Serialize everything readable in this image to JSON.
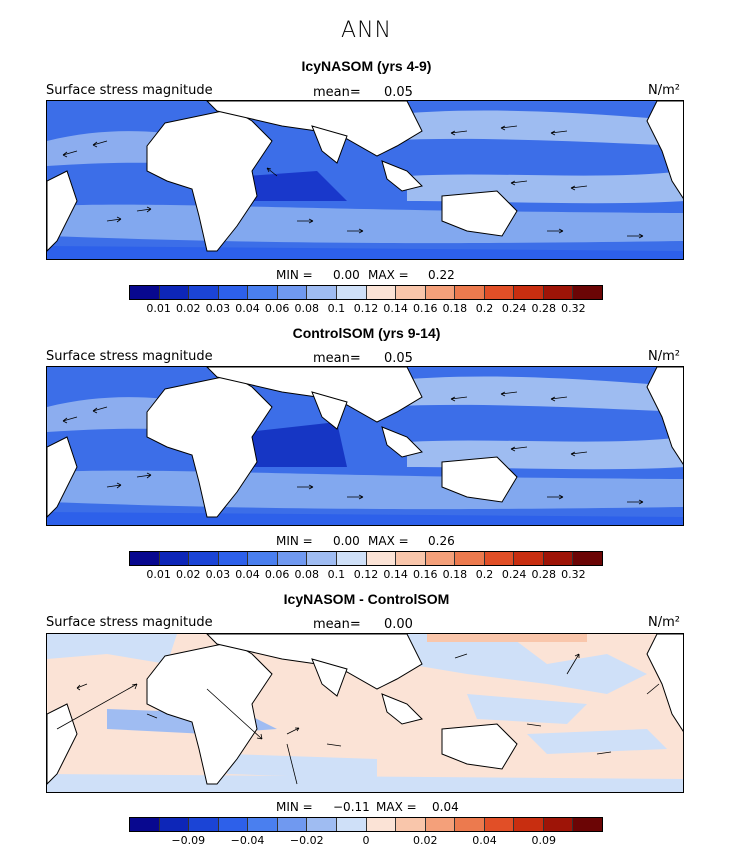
{
  "page": {
    "title": "ANN"
  },
  "panels": [
    {
      "title": "IcyNASOM (yrs 4-9)",
      "field_label": "Surface stress magnitude",
      "mean_label": "mean=",
      "mean_value": "0.05",
      "units": "N/m²",
      "min_label": "MIN =",
      "min_value": "0.00",
      "max_label": "MAX =",
      "max_value": "0.22",
      "colorbar": {
        "colors": [
          "#08088f",
          "#0d26b8",
          "#1b44d6",
          "#2d60ea",
          "#4a7fef",
          "#7099f0",
          "#9fbcf2",
          "#cfe0f8",
          "#fbe3d6",
          "#f9c6ab",
          "#f4a07a",
          "#ec7a4e",
          "#e14f27",
          "#c82e10",
          "#9e1407",
          "#6b0505"
        ],
        "ticks": [
          "0.01",
          "0.02",
          "0.03",
          "0.04",
          "0.06",
          "0.08",
          "0.1",
          "0.12",
          "0.14",
          "0.16",
          "0.18",
          "0.2",
          "0.24",
          "0.28",
          "0.32"
        ]
      }
    },
    {
      "title": "ControlSOM (yrs 9-14)",
      "field_label": "Surface stress magnitude",
      "mean_label": "mean=",
      "mean_value": "0.05",
      "units": "N/m²",
      "min_label": "MIN =",
      "min_value": "0.00",
      "max_label": "MAX =",
      "max_value": "0.26",
      "colorbar": {
        "colors": [
          "#08088f",
          "#0d26b8",
          "#1b44d6",
          "#2d60ea",
          "#4a7fef",
          "#7099f0",
          "#9fbcf2",
          "#cfe0f8",
          "#fbe3d6",
          "#f9c6ab",
          "#f4a07a",
          "#ec7a4e",
          "#e14f27",
          "#c82e10",
          "#9e1407",
          "#6b0505"
        ],
        "ticks": [
          "0.01",
          "0.02",
          "0.03",
          "0.04",
          "0.06",
          "0.08",
          "0.1",
          "0.12",
          "0.14",
          "0.16",
          "0.18",
          "0.2",
          "0.24",
          "0.28",
          "0.32"
        ]
      }
    },
    {
      "title": "IcyNASOM - ControlSOM",
      "field_label": "Surface stress magnitude",
      "mean_label": "mean=",
      "mean_value": "0.00",
      "units": "N/m²",
      "min_label": "MIN =",
      "min_value": "−0.11",
      "max_label": "MAX =",
      "max_value": "0.04",
      "colorbar": {
        "colors": [
          "#08088f",
          "#0d26b8",
          "#1b44d6",
          "#2d60ea",
          "#4a7fef",
          "#7099f0",
          "#9fbcf2",
          "#cfe0f8",
          "#fbe3d6",
          "#f9c6ab",
          "#f4a07a",
          "#ec7a4e",
          "#e14f27",
          "#c82e10",
          "#9e1407",
          "#6b0505"
        ],
        "ticks": [
          "−0.09",
          "−0.04",
          "−0.02",
          "0",
          "0.02",
          "0.04",
          "0.09"
        ]
      }
    }
  ]
}
